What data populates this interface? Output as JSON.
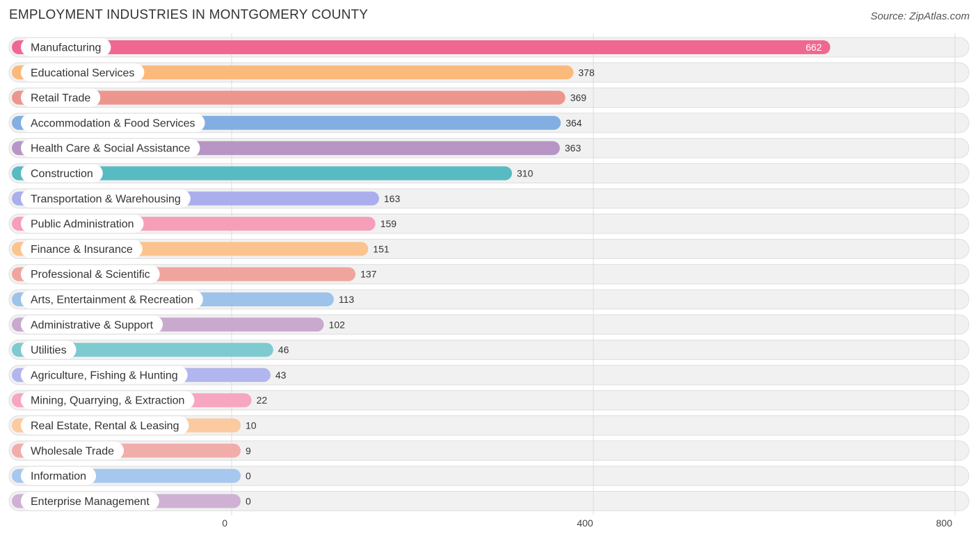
{
  "chart_data": {
    "type": "bar",
    "orientation": "horizontal",
    "title": "EMPLOYMENT INDUSTRIES IN MONTGOMERY COUNTY",
    "source": "Source: ZipAtlas.com",
    "xlim": [
      0,
      800
    ],
    "ticks": [
      0,
      400,
      800
    ],
    "categories": [
      "Manufacturing",
      "Educational Services",
      "Retail Trade",
      "Accommodation & Food Services",
      "Health Care & Social Assistance",
      "Construction",
      "Transportation & Warehousing",
      "Public Administration",
      "Finance & Insurance",
      "Professional & Scientific",
      "Arts, Entertainment & Recreation",
      "Administrative & Support",
      "Utilities",
      "Agriculture, Fishing & Hunting",
      "Mining, Quarrying, & Extraction",
      "Real Estate, Rental & Leasing",
      "Wholesale Trade",
      "Information",
      "Enterprise Management"
    ],
    "values": [
      662,
      378,
      369,
      364,
      363,
      310,
      163,
      159,
      151,
      137,
      113,
      102,
      46,
      43,
      22,
      10,
      9,
      0,
      0
    ],
    "colors": [
      "#f06892",
      "#fbb97b",
      "#ec968e",
      "#82aee2",
      "#b796c5",
      "#58bac2",
      "#aaaeec",
      "#f59fb8",
      "#fbc38e",
      "#efa59e",
      "#9ec3ea",
      "#c9a9cd",
      "#7dcad0",
      "#b2b6ee",
      "#f7a6c0",
      "#fbca9f",
      "#f1adaa",
      "#a6c7ee",
      "#ceb1d3"
    ]
  }
}
